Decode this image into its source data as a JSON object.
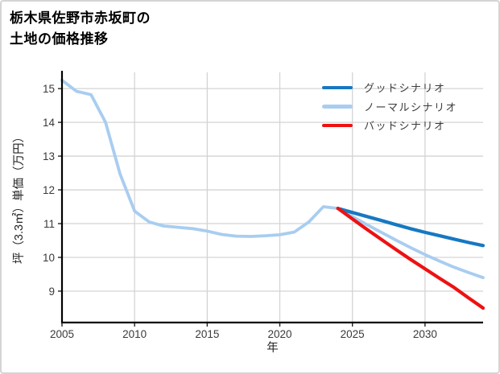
{
  "title": {
    "line1": "栃木県佐野市赤坂町の",
    "line2": "土地の価格推移"
  },
  "chart_data": {
    "type": "line",
    "title": "栃木県佐野市赤坂町の土地の価格推移",
    "xlabel": "年",
    "ylabel": "坪（3.3㎡）単価（万円）",
    "xlim": [
      2005,
      2034
    ],
    "ylim": [
      8.07,
      15.48
    ],
    "x_ticks": [
      2005,
      2010,
      2015,
      2020,
      2025,
      2030
    ],
    "y_ticks": [
      9,
      10,
      11,
      12,
      13,
      14,
      15
    ],
    "grid": true,
    "grid_color": "#d4d4d4",
    "axis_color": "#000000",
    "tick_label_color": "#3a3a3a",
    "legend_position": "top-right-inside",
    "series": [
      {
        "key": "good",
        "name": "グッドシナリオ",
        "color": "#1778c2",
        "line_width": 4.2,
        "x": [
          2024,
          2025,
          2026,
          2027,
          2028,
          2029,
          2030,
          2031,
          2032,
          2033,
          2034
        ],
        "values": [
          11.45,
          11.33,
          11.21,
          11.09,
          10.97,
          10.85,
          10.74,
          10.64,
          10.54,
          10.44,
          10.35
        ]
      },
      {
        "key": "normal",
        "name": "ノーマルシナリオ",
        "color": "#a8cdf0",
        "line_width": 3.8,
        "x": [
          2005,
          2006,
          2007,
          2008,
          2009,
          2010,
          2011,
          2012,
          2013,
          2014,
          2015,
          2016,
          2017,
          2018,
          2019,
          2020,
          2021,
          2022,
          2023,
          2024,
          2025,
          2026,
          2027,
          2028,
          2029,
          2030,
          2031,
          2032,
          2033,
          2034
        ],
        "values": [
          15.25,
          14.92,
          14.82,
          14.0,
          12.47,
          11.37,
          11.05,
          10.93,
          10.89,
          10.85,
          10.78,
          10.68,
          10.63,
          10.62,
          10.64,
          10.67,
          10.75,
          11.05,
          11.5,
          11.45,
          11.21,
          10.97,
          10.74,
          10.51,
          10.29,
          10.08,
          9.89,
          9.71,
          9.55,
          9.4
        ]
      },
      {
        "key": "bad",
        "name": "バッドシナリオ",
        "color": "#ee1111",
        "line_width": 4.2,
        "x": [
          2024,
          2025,
          2026,
          2027,
          2028,
          2029,
          2030,
          2031,
          2032,
          2033,
          2034
        ],
        "values": [
          11.45,
          11.14,
          10.83,
          10.53,
          10.23,
          9.94,
          9.66,
          9.38,
          9.11,
          8.8,
          8.5
        ]
      }
    ]
  }
}
